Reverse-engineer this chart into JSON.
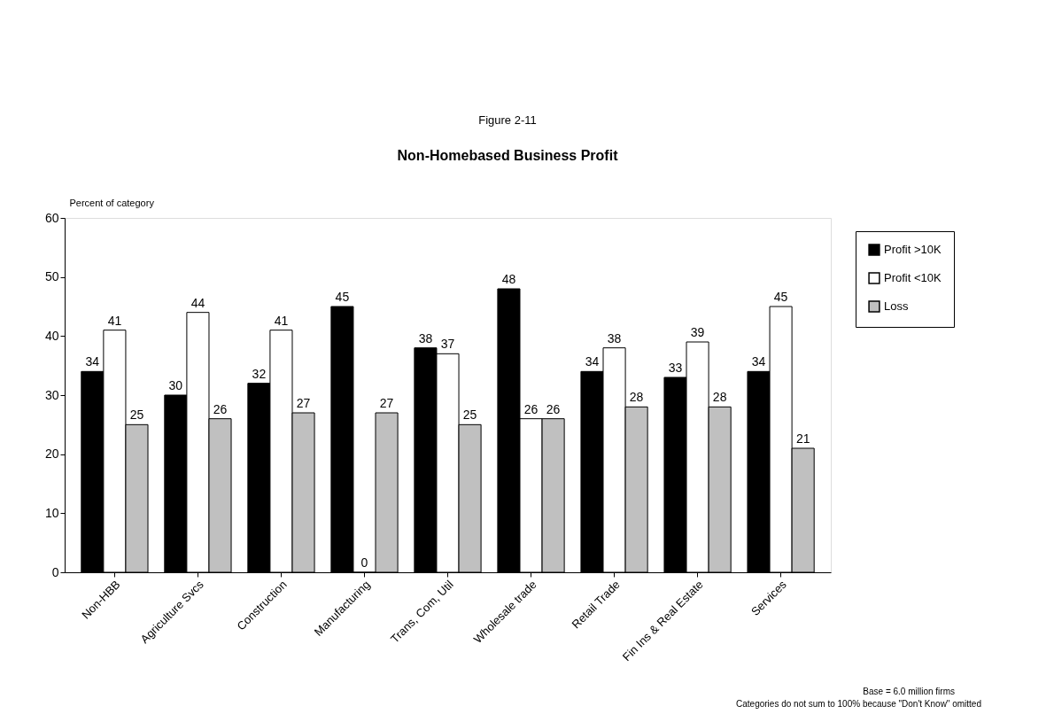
{
  "chart_data": {
    "type": "bar",
    "title": "Non-Homebased Business Profit",
    "ylabel": "Percent of category",
    "categories": [
      "Non-HBB",
      "Agriculture Svcs",
      "Construction",
      "Manufacturing",
      "Trans, Com, Util",
      "Wholesale trade",
      "Retail Trade",
      "Fin Ins  & Real Estate",
      "Services"
    ],
    "series": [
      {
        "name": "Profit >10K",
        "color": "#000000",
        "values": [
          34,
          30,
          32,
          45,
          38,
          48,
          34,
          33,
          34
        ]
      },
      {
        "name": "Profit <10K",
        "color": "#ffffff",
        "values": [
          41,
          44,
          41,
          0,
          37,
          26,
          38,
          39,
          45
        ]
      },
      {
        "name": "Loss",
        "color": "#c0c0c0",
        "values": [
          25,
          26,
          27,
          27,
          25,
          26,
          28,
          28,
          21
        ]
      }
    ],
    "ylim": [
      0,
      60
    ],
    "yticks": [
      0,
      10,
      20,
      30,
      40,
      50,
      60
    ],
    "grid": false,
    "legend": "right",
    "data_labels": true,
    "annotations": [
      "Figure 2-11",
      "Base = 6.0 million firms",
      "Categories do not sum to 100% because \"Don't Know\" omitted"
    ]
  }
}
